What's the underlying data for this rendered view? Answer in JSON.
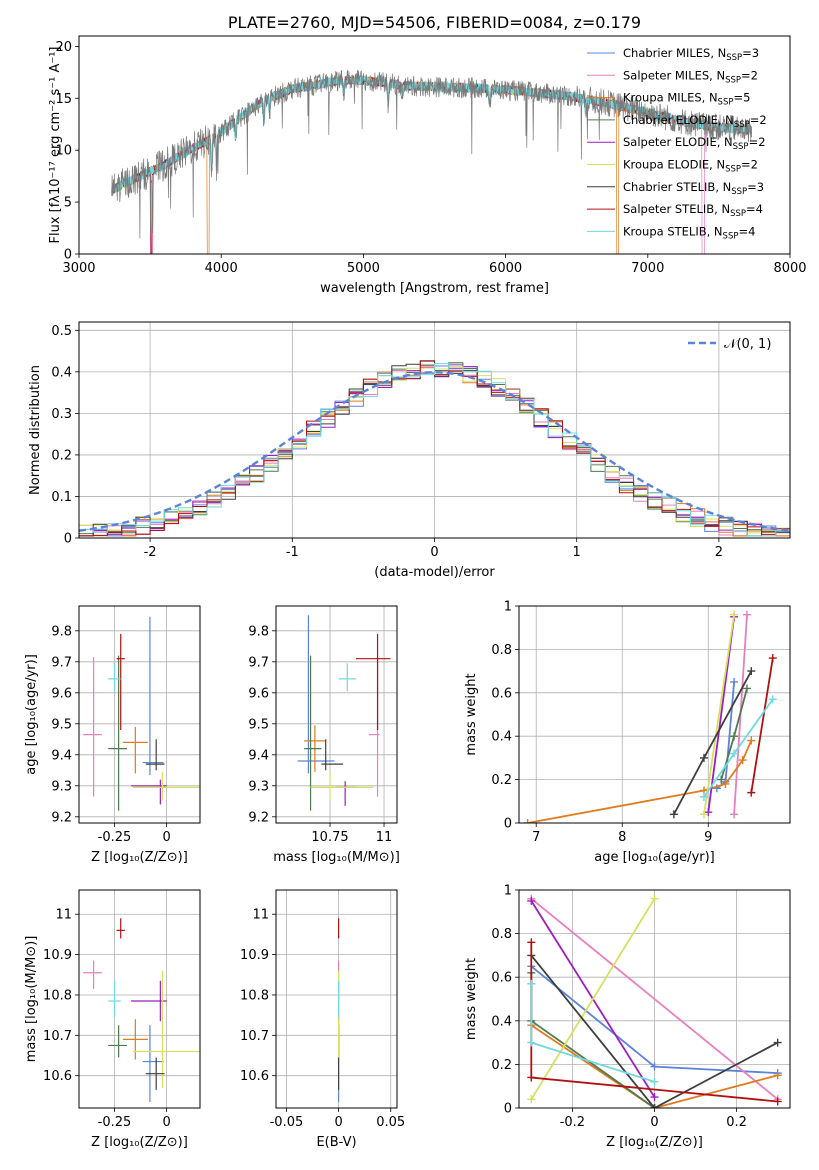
{
  "colors": {
    "Chabrier MILES": "#5b84d9",
    "Salpeter MILES": "#e87fbf",
    "Kroupa MILES": "#e07b1f",
    "Chabrier ELODIE": "#4f7a4f",
    "Salpeter ELODIE": "#9b1fbf",
    "Kroupa ELODIE": "#d6e060",
    "Chabrier STELIB": "#3f3f3f",
    "Salpeter STELIB": "#b01010",
    "Kroupa STELIB": "#70d8e0",
    "gaussian": "#5b84d9",
    "grid": "#b0b0b0"
  },
  "chart_data": [
    {
      "id": "spectrum",
      "type": "line",
      "title": "PLATE=2760, MJD=54506, FIBERID=0084, z=0.179",
      "xlabel": "wavelength [Angstrom, rest frame]",
      "ylabel": "Flux [fλ10⁻¹⁷ erg cm⁻² s⁻¹ A⁻¹]",
      "xlim": [
        3000,
        8000
      ],
      "ylim": [
        0,
        21
      ],
      "xticks": [
        3000,
        4000,
        5000,
        6000,
        7000,
        8000
      ],
      "yticks": [
        0,
        5,
        10,
        15,
        20
      ],
      "grid": false,
      "legend_placement": "right",
      "x_range_data": [
        3230,
        7730
      ],
      "continuum": {
        "x": [
          3230,
          3400,
          3600,
          3800,
          3950,
          4100,
          4300,
          4500,
          4700,
          4900,
          5100,
          5300,
          5500,
          5800,
          6100,
          6400,
          6700,
          7000,
          7300,
          7500,
          7730
        ],
        "y": [
          6.2,
          7.3,
          8.6,
          10.2,
          11.2,
          12.8,
          14.8,
          15.9,
          16.4,
          16.8,
          16.6,
          16.2,
          16.1,
          16.0,
          15.7,
          15.3,
          14.6,
          13.6,
          12.6,
          12.2,
          11.9
        ]
      },
      "legend": [
        {
          "model": "Chabrier MILES",
          "label": "Chabrier MILES, N",
          "sub": "SSP",
          "suffix": "=3"
        },
        {
          "model": "Salpeter MILES",
          "label": "Salpeter MILES, N",
          "sub": "SSP",
          "suffix": "=2"
        },
        {
          "model": "Kroupa MILES",
          "label": "Kroupa MILES, N",
          "sub": "SSP",
          "suffix": "=5"
        },
        {
          "model": "Chabrier ELODIE",
          "label": "Chabrier ELODIE, N",
          "sub": "SSP",
          "suffix": "=2"
        },
        {
          "model": "Salpeter ELODIE",
          "label": "Salpeter ELODIE, N",
          "sub": "SSP",
          "suffix": "=2"
        },
        {
          "model": "Kroupa ELODIE",
          "label": "Kroupa ELODIE, N",
          "sub": "SSP",
          "suffix": "=2"
        },
        {
          "model": "Chabrier STELIB",
          "label": "Chabrier STELIB, N",
          "sub": "SSP",
          "suffix": "=3"
        },
        {
          "model": "Salpeter STELIB",
          "label": "Salpeter STELIB, N",
          "sub": "SSP",
          "suffix": "=4"
        },
        {
          "model": "Kroupa STELIB",
          "label": "Kroupa STELIB, N",
          "sub": "SSP",
          "suffix": "=4"
        }
      ]
    },
    {
      "id": "residuals",
      "type": "line",
      "xlabel": "(data-model)/error",
      "ylabel": "Normed distribution",
      "xlim": [
        -2.5,
        2.5
      ],
      "ylim": [
        0,
        0.52
      ],
      "xticks": [
        -2,
        -1,
        0,
        1,
        2
      ],
      "yticks": [
        0.0,
        0.1,
        0.2,
        0.3,
        0.4,
        0.5
      ],
      "grid": true,
      "legend_placement": "top-right",
      "gaussian_label": "𝒩(0, 1)",
      "bin_width": 0.1
    },
    {
      "id": "z-age",
      "type": "scatter",
      "xlabel": "Z [log₁₀(Z/Z⊙)]",
      "ylabel": "age  [log₁₀(age/yr)]",
      "xlim": [
        -0.42,
        0.16
      ],
      "ylim": [
        9.18,
        9.88
      ],
      "xticks": [
        -0.25,
        0.0
      ],
      "yticks": [
        9.2,
        9.3,
        9.4,
        9.5,
        9.6,
        9.7,
        9.8
      ],
      "grid": true
    },
    {
      "id": "mass-age",
      "type": "scatter",
      "xlabel": "mass [log₁₀(M/M⊙)]",
      "ylabel": "",
      "xlim": [
        10.5,
        11.06
      ],
      "ylim": [
        9.18,
        9.88
      ],
      "xticks": [
        10.75,
        11.0
      ],
      "yticks": [
        9.2,
        9.3,
        9.4,
        9.5,
        9.6,
        9.7,
        9.8
      ],
      "grid": true
    },
    {
      "id": "age-massweight",
      "type": "line",
      "xlabel": "age  [log₁₀(age/yr)]",
      "ylabel": "mass weight",
      "xlim": [
        6.8,
        9.95
      ],
      "ylim": [
        0,
        1.0
      ],
      "xticks": [
        7,
        8,
        9
      ],
      "yticks": [
        0.0,
        0.2,
        0.4,
        0.6,
        0.8,
        1.0
      ],
      "grid": true
    },
    {
      "id": "z-mass",
      "type": "scatter",
      "xlabel": "Z [log₁₀(Z/Z⊙)]",
      "ylabel": "mass [log₁₀(M/M⊙)]",
      "xlim": [
        -0.42,
        0.16
      ],
      "ylim": [
        10.52,
        11.06
      ],
      "xticks": [
        -0.25,
        0.0
      ],
      "yticks": [
        10.6,
        10.7,
        10.8,
        10.9,
        11.0
      ],
      "grid": true
    },
    {
      "id": "ebv-mass",
      "type": "scatter",
      "xlabel": "E(B-V)",
      "ylabel": "",
      "xlim": [
        -0.06,
        0.056
      ],
      "ylim": [
        10.52,
        11.06
      ],
      "xticks": [
        -0.05,
        0.0,
        0.05
      ],
      "yticks": [
        10.6,
        10.7,
        10.8,
        10.9,
        11.0
      ],
      "grid": true
    },
    {
      "id": "z-massweight",
      "type": "line",
      "xlabel": "Z [log₁₀(Z/Z⊙)]",
      "ylabel": "mass weight",
      "xlim": [
        -0.33,
        0.33
      ],
      "ylim": [
        0,
        1.0
      ],
      "xticks": [
        -0.2,
        0.0,
        0.2
      ],
      "yticks": [
        0.0,
        0.2,
        0.4,
        0.6,
        0.8,
        1.0
      ],
      "grid": true
    }
  ],
  "models": [
    {
      "name": "Chabrier MILES",
      "Z": -0.08,
      "Z_err": [
        0.035,
        0.065
      ],
      "age": 9.375,
      "age_err": [
        0.04,
        0.47
      ],
      "mass": 10.635,
      "mass_err": [
        0.1,
        0.09
      ],
      "mass_age": [
        10.65,
        9.38
      ],
      "mass_age_err": [
        0.05,
        0.12,
        0.04,
        0.47
      ],
      "ebv": 0.0,
      "ebv_err": [
        0.0,
        0.0
      ],
      "weights_age": [
        [
          9.1,
          0.16
        ],
        [
          9.2,
          0.19
        ],
        [
          9.3,
          0.65
        ]
      ],
      "weights_z": [
        [
          -0.3,
          0.65
        ],
        [
          0.0,
          0.19
        ],
        [
          0.3,
          0.16
        ]
      ]
    },
    {
      "name": "Salpeter MILES",
      "Z": -0.35,
      "Z_err": [
        0.05,
        0.04
      ],
      "age": 9.465,
      "age_err": [
        0.2,
        0.25
      ],
      "mass": 10.855,
      "mass_err": [
        0.04,
        0.03
      ],
      "mass_age": [
        10.97,
        9.465
      ],
      "mass_age_err": [
        0.04,
        0.01,
        0.2,
        0.25
      ],
      "ebv": 0.0,
      "ebv_err": [
        0.0,
        0.0
      ],
      "weights_age": [
        [
          9.3,
          0.04
        ],
        [
          9.45,
          0.96
        ]
      ],
      "weights_z": [
        [
          -0.3,
          0.96
        ],
        [
          0.3,
          0.04
        ]
      ]
    },
    {
      "name": "Kroupa MILES",
      "Z": -0.15,
      "Z_err": [
        0.06,
        0.06
      ],
      "age": 9.44,
      "age_err": [
        0.1,
        0.05
      ],
      "mass": 10.69,
      "mass_err": [
        0.05,
        0.05
      ],
      "mass_age": [
        10.68,
        9.445
      ],
      "mass_age_err": [
        0.05,
        0.05,
        0.1,
        0.05
      ],
      "ebv": 0.0,
      "ebv_err": [
        0.0,
        0.0
      ],
      "weights_age": [
        [
          6.9,
          0.0
        ],
        [
          8.95,
          0.15
        ],
        [
          9.2,
          0.18
        ],
        [
          9.4,
          0.29
        ],
        [
          9.5,
          0.38
        ]
      ],
      "weights_z": [
        [
          -0.3,
          0.38
        ],
        [
          0.0,
          0.0
        ],
        [
          0.3,
          0.15
        ]
      ]
    },
    {
      "name": "Chabrier ELODIE",
      "Z": -0.23,
      "Z_err": [
        0.05,
        0.04
      ],
      "age": 9.42,
      "age_err": [
        0.2,
        0.3
      ],
      "mass": 10.675,
      "mass_err": [
        0.03,
        0.05
      ],
      "mass_age": [
        10.66,
        9.42
      ],
      "mass_age_err": [
        0.03,
        0.05,
        0.2,
        0.3
      ],
      "ebv": 0.0,
      "ebv_err": [
        0.0,
        0.0
      ],
      "weights_age": [
        [
          9.15,
          0.2
        ],
        [
          9.3,
          0.4
        ],
        [
          9.45,
          0.62
        ]
      ],
      "weights_z": [
        [
          -0.3,
          0.62
        ],
        [
          -0.3,
          0.4
        ],
        [
          0.0,
          0.0
        ]
      ]
    },
    {
      "name": "Salpeter ELODIE",
      "Z": -0.03,
      "Z_err": [
        0.14,
        0.03
      ],
      "age": 9.3,
      "age_err": [
        0.06,
        0.02
      ],
      "mass": 10.785,
      "mass_err": [
        0.05,
        0.05
      ],
      "mass_age": [
        10.82,
        9.295
      ],
      "mass_age_err": [
        0.04,
        0.05,
        0.06,
        0.02
      ],
      "ebv": 0.0,
      "ebv_err": [
        0.0,
        0.0
      ],
      "weights_age": [
        [
          9.0,
          0.05
        ],
        [
          9.3,
          0.95
        ]
      ],
      "weights_z": [
        [
          -0.3,
          0.95
        ],
        [
          0.0,
          0.05
        ]
      ]
    },
    {
      "name": "Kroupa ELODIE",
      "Z": -0.02,
      "Z_err": [
        0.14,
        0.18
      ],
      "age": 9.295,
      "age_err": [
        0.04,
        0.05
      ],
      "mass": 10.66,
      "mass_err": [
        0.09,
        0.2
      ],
      "mass_age": [
        10.75,
        9.295
      ],
      "mass_age_err": [
        0.09,
        0.2,
        0.04,
        0.05
      ],
      "ebv": 0.0,
      "ebv_err": [
        0.0,
        0.0
      ],
      "weights_age": [
        [
          8.95,
          0.04
        ],
        [
          9.3,
          0.96
        ]
      ],
      "weights_z": [
        [
          -0.3,
          0.04
        ],
        [
          0.0,
          0.96
        ]
      ]
    },
    {
      "name": "Chabrier STELIB",
      "Z": -0.05,
      "Z_err": [
        0.05,
        0.04
      ],
      "age": 9.37,
      "age_err": [
        0.02,
        0.08
      ],
      "mass": 10.605,
      "mass_err": [
        0.04,
        0.04
      ],
      "mass_age": [
        10.73,
        9.37
      ],
      "mass_age_err": [
        0.02,
        0.08,
        0.02,
        0.08
      ],
      "ebv": 0.0,
      "ebv_err": [
        0.0,
        0.0
      ],
      "weights_age": [
        [
          8.6,
          0.04
        ],
        [
          8.95,
          0.3
        ],
        [
          9.5,
          0.7
        ]
      ],
      "weights_z": [
        [
          -0.3,
          0.7
        ],
        [
          0.0,
          0.0
        ],
        [
          0.3,
          0.3
        ]
      ]
    },
    {
      "name": "Salpeter STELIB",
      "Z": -0.22,
      "Z_err": [
        0.02,
        0.02
      ],
      "age": 9.71,
      "age_err": [
        0.23,
        0.08
      ],
      "mass": 10.96,
      "mass_err": [
        0.02,
        0.03
      ],
      "mass_age": [
        10.97,
        9.71
      ],
      "mass_age_err": [
        0.1,
        0.06,
        0.23,
        0.08
      ],
      "ebv": 0.0,
      "ebv_err": [
        0.0,
        0.0
      ],
      "weights_age": [
        [
          9.5,
          0.14
        ],
        [
          9.75,
          0.76
        ]
      ],
      "weights_z": [
        [
          -0.3,
          0.76
        ],
        [
          -0.3,
          0.14
        ],
        [
          0.3,
          0.03
        ]
      ]
    },
    {
      "name": "Kroupa STELIB",
      "Z": -0.25,
      "Z_err": [
        0.03,
        0.03
      ],
      "age": 9.645,
      "age_err": [
        0.04,
        0.05
      ],
      "mass": 10.785,
      "mass_err": [
        0.04,
        0.05
      ],
      "mass_age": [
        10.83,
        9.645
      ],
      "mass_age_err": [
        0.04,
        0.04,
        0.04,
        0.05
      ],
      "ebv": 0.0,
      "ebv_err": [
        0.0,
        0.0
      ],
      "weights_age": [
        [
          8.95,
          0.12
        ],
        [
          9.3,
          0.32
        ],
        [
          9.75,
          0.57
        ]
      ],
      "weights_z": [
        [
          -0.3,
          0.57
        ],
        [
          -0.3,
          0.3
        ],
        [
          0.0,
          0.12
        ]
      ]
    }
  ]
}
